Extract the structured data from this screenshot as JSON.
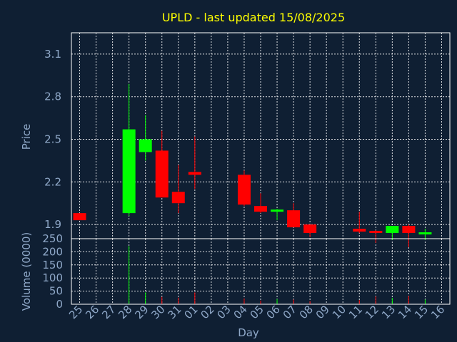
{
  "chart_data": {
    "type": "candlestick",
    "title": "UPLD - last updated 15/08/2025",
    "xlabel": "Day",
    "ylabel": "Price",
    "volume_label": "Volume (0000)",
    "x_ticks": [
      "25",
      "26",
      "27",
      "28",
      "29",
      "30",
      "31",
      "01",
      "02",
      "03",
      "04",
      "05",
      "06",
      "07",
      "08",
      "09",
      "10",
      "11",
      "12",
      "13",
      "14",
      "15",
      "16"
    ],
    "price_ticks": [
      "3.1",
      "2.8",
      "2.5",
      "2.2",
      "1.9"
    ],
    "price_tick_values": [
      3.1,
      2.8,
      2.5,
      2.2,
      1.9
    ],
    "price_ylim": [
      1.8,
      3.25
    ],
    "volume_ticks": [
      "250",
      "200",
      "150",
      "100",
      "50",
      "0"
    ],
    "volume_tick_values": [
      250,
      200,
      150,
      100,
      50,
      0
    ],
    "volume_ylim": [
      0,
      250
    ],
    "grid": true,
    "colors": {
      "background": "#0f1f33",
      "up": "#00ff00",
      "down": "#ff0000",
      "title": "#ffff00",
      "axis_text": "#8fa8c8",
      "grid": "#ffffff"
    },
    "candles": [
      {
        "day": "25",
        "open": 1.98,
        "high": 1.98,
        "low": 1.93,
        "close": 1.93,
        "volume": 0
      },
      {
        "day": "28",
        "open": 1.98,
        "high": 2.89,
        "low": 1.96,
        "close": 2.57,
        "volume": 222
      },
      {
        "day": "29",
        "open": 2.41,
        "high": 2.67,
        "low": 2.35,
        "close": 2.5,
        "volume": 45
      },
      {
        "day": "30",
        "open": 2.42,
        "high": 2.56,
        "low": 2.09,
        "close": 2.09,
        "volume": 28
      },
      {
        "day": "31",
        "open": 2.13,
        "high": 2.32,
        "low": 1.98,
        "close": 2.05,
        "volume": 25
      },
      {
        "day": "01",
        "open": 2.27,
        "high": 2.52,
        "low": 2.15,
        "close": 2.25,
        "volume": 45
      },
      {
        "day": "04",
        "open": 2.25,
        "high": 2.28,
        "low": 2.03,
        "close": 2.04,
        "volume": 22
      },
      {
        "day": "05",
        "open": 2.03,
        "high": 2.12,
        "low": 1.98,
        "close": 1.99,
        "volume": 14
      },
      {
        "day": "06",
        "open": 1.99,
        "high": 2.01,
        "low": 1.93,
        "close": 2.0,
        "volume": 20
      },
      {
        "day": "07",
        "open": 2.0,
        "high": 2.05,
        "low": 1.88,
        "close": 1.88,
        "volume": 18
      },
      {
        "day": "08",
        "open": 1.9,
        "high": 1.9,
        "low": 1.81,
        "close": 1.84,
        "volume": 12
      },
      {
        "day": "11",
        "open": 1.87,
        "high": 1.99,
        "low": 1.84,
        "close": 1.85,
        "volume": 16
      },
      {
        "day": "12",
        "open": 1.85,
        "high": 1.86,
        "low": 1.77,
        "close": 1.84,
        "volume": 30
      },
      {
        "day": "13",
        "open": 1.84,
        "high": 1.89,
        "low": 1.79,
        "close": 1.89,
        "volume": 24
      },
      {
        "day": "14",
        "open": 1.89,
        "high": 1.9,
        "low": 1.74,
        "close": 1.84,
        "volume": 32
      },
      {
        "day": "15",
        "open": 1.83,
        "high": 1.87,
        "low": 1.79,
        "close": 1.84,
        "volume": 18
      }
    ]
  }
}
